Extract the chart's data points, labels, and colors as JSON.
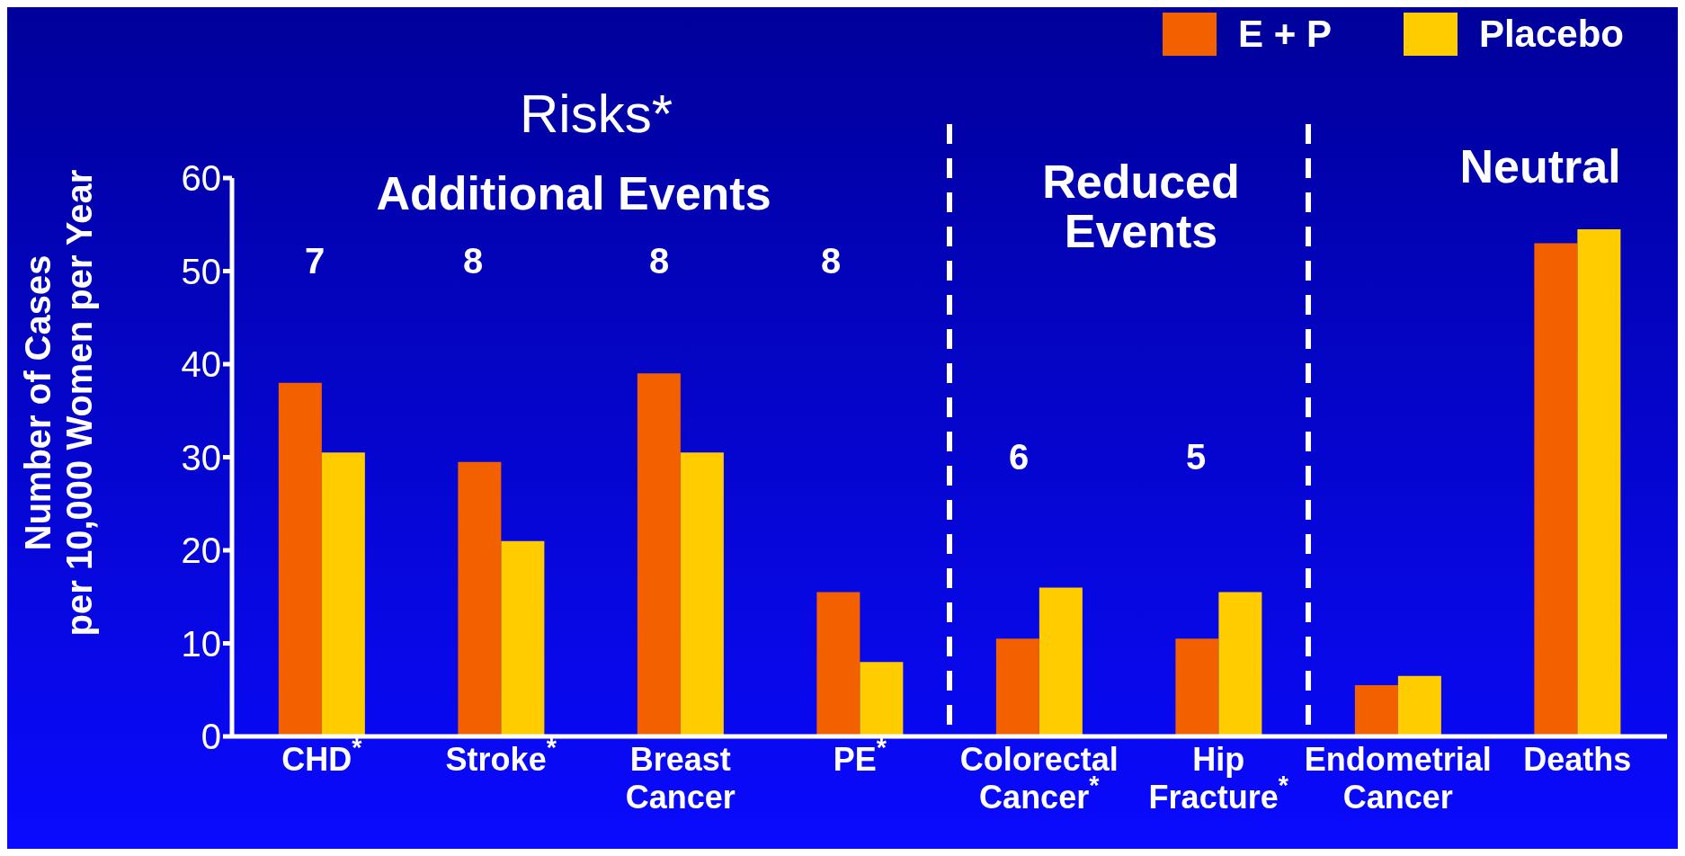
{
  "chart_data": {
    "type": "bar",
    "ylabel": "Number of Cases\nper 10,000 Women per Year",
    "categories": [
      "CHD$^{*}$",
      "Stroke$^{*}$",
      "Breast Cancer",
      "PE$^{*}$",
      "Colorectal Cancer$^{*}$",
      "Hip Fracture$^{*}$",
      "Endometrial Cancer",
      "Deaths"
    ],
    "series": [
      {
        "name": "E + P",
        "color": "#f26000",
        "values": [
          38,
          29.5,
          39,
          15.5,
          10.5,
          10.5,
          5.5,
          53
        ]
      },
      {
        "name": "Placebo",
        "color": "#ffcc00",
        "values": [
          30.5,
          21,
          30.5,
          8,
          16,
          15.5,
          6.5,
          54.5
        ]
      }
    ],
    "ylim": [
      0,
      60
    ],
    "yticks": [
      0,
      10,
      20,
      30,
      40,
      50,
      60
    ],
    "grid": false,
    "legend": "top right",
    "annotations": [
      "Risks*",
      "Additional Events",
      "Reduced Events",
      "Neutral",
      "7",
      "8",
      "8",
      "8",
      "6",
      "5"
    ]
  }
}
